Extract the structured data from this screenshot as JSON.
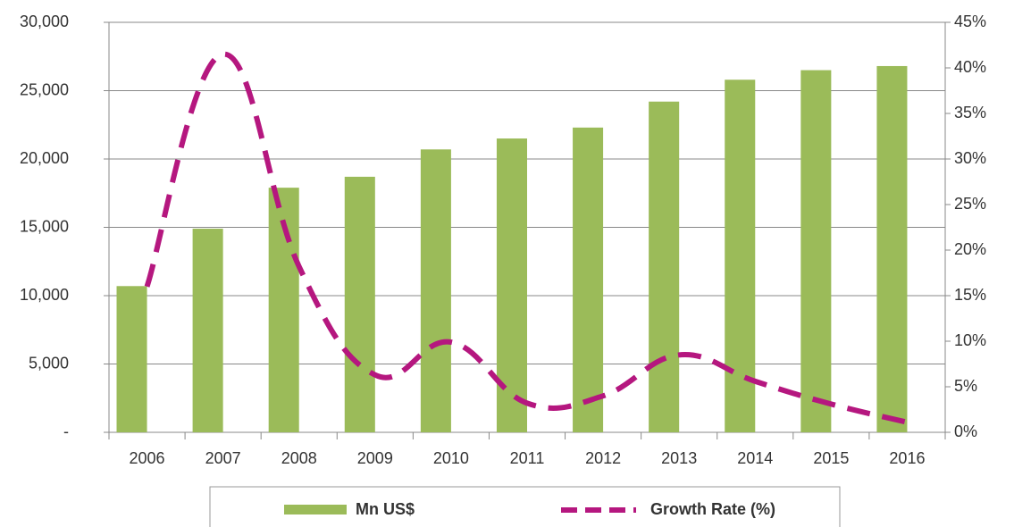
{
  "chart_data": {
    "type": "bar_line",
    "categories": [
      "2006",
      "2007",
      "2008",
      "2009",
      "2010",
      "2011",
      "2012",
      "2013",
      "2014",
      "2015",
      "2016"
    ],
    "series": [
      {
        "name": "Mn US$",
        "type": "bar",
        "color": "#9bbb59",
        "values": [
          10700,
          14900,
          17900,
          18700,
          20700,
          21500,
          22300,
          24200,
          25800,
          26500,
          26800
        ]
      },
      {
        "name": "Growth Rate (%)",
        "type": "line",
        "axis": "y2",
        "color": "#b5177f",
        "dashed": true,
        "values": [
          16,
          41.5,
          18.2,
          6.3,
          9.9,
          3.2,
          4.0,
          8.5,
          5.6,
          3.1,
          1.1
        ]
      }
    ],
    "ylim": [
      0,
      30000
    ],
    "yticks": [
      {
        "value": 0,
        "label": "-"
      },
      {
        "value": 5000,
        "label": "5,000"
      },
      {
        "value": 10000,
        "label": "10,000"
      },
      {
        "value": 15000,
        "label": "15,000"
      },
      {
        "value": 20000,
        "label": "20,000"
      },
      {
        "value": 25000,
        "label": "25,000"
      },
      {
        "value": 30000,
        "label": "30,000"
      }
    ],
    "y2lim": [
      0,
      45
    ],
    "y2ticks": [
      {
        "value": 0,
        "label": "0%"
      },
      {
        "value": 5,
        "label": "5%"
      },
      {
        "value": 10,
        "label": "10%"
      },
      {
        "value": 15,
        "label": "15%"
      },
      {
        "value": 20,
        "label": "20%"
      },
      {
        "value": 25,
        "label": "25%"
      },
      {
        "value": 30,
        "label": "30%"
      },
      {
        "value": 35,
        "label": "35%"
      },
      {
        "value": 40,
        "label": "40%"
      },
      {
        "value": 45,
        "label": "45%"
      }
    ],
    "grid": true
  }
}
